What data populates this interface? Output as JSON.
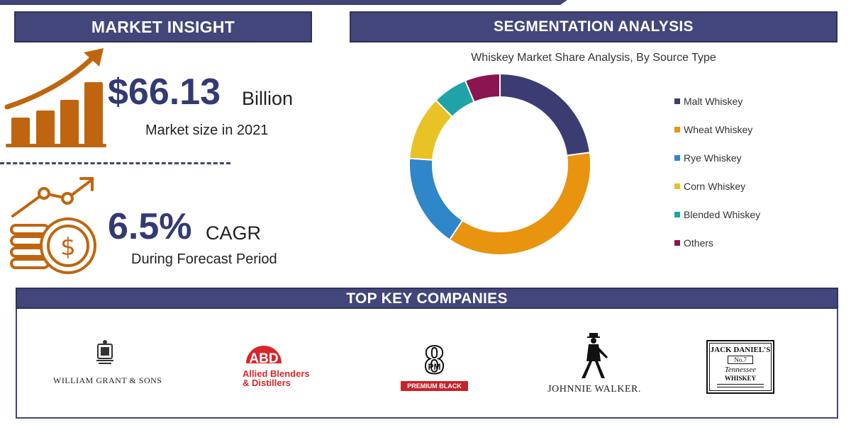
{
  "market_insight": {
    "header": "MARKET INSIGHT",
    "market_size_value": "$66.13",
    "market_size_unit": "Billion",
    "market_size_caption": "Market size in 2021",
    "cagr_value": "6.5%",
    "cagr_unit": "CAGR",
    "cagr_caption": "During Forecast Period"
  },
  "segmentation": {
    "header": "SEGMENTATION ANALYSIS"
  },
  "chart_data": {
    "type": "pie",
    "title": "Whiskey Market Share Analysis, By Source Type",
    "donut": true,
    "legend_position": "right",
    "categories": [
      "Malt Whiskey",
      "Wheat Whiskey",
      "Rye Whiskey",
      "Corn Whiskey",
      "Blended Whiskey",
      "Others"
    ],
    "values": [
      22,
      35,
      16,
      11,
      6,
      6
    ],
    "colors": [
      "#3b3d72",
      "#e8940f",
      "#2f86c8",
      "#e9c325",
      "#1fa3a8",
      "#8a1550"
    ]
  },
  "top_companies": {
    "header": "TOP KEY COMPANIES",
    "logos": [
      {
        "name": "WILLIAM GRANT & SONS"
      },
      {
        "name_line1": "Allied Blenders",
        "name_line2": "& Distillers",
        "mark": "ABD"
      },
      {
        "mark_top": "8",
        "mark_fm": "PM",
        "name": "PREMIUM BLACK"
      },
      {
        "name": "JOHNNIE WALKER."
      },
      {
        "name_line1": "JACK DANIEL'S",
        "badge": "No.7",
        "name_line2": "Tennessee",
        "name_line3": "WHISKEY"
      }
    ]
  },
  "colors": {
    "header_bg": "#43467a",
    "value_text": "#333a73",
    "icon_orange": "#c0650f"
  }
}
